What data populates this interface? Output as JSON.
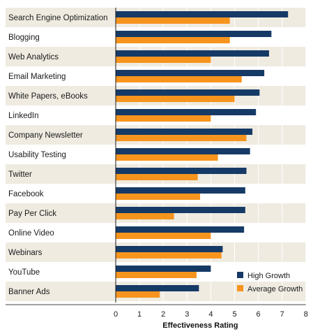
{
  "chart_data": {
    "type": "bar",
    "orientation": "horizontal",
    "categories": [
      "Search Engine Optimization",
      "Blogging",
      "Web Analytics",
      "Email Marketing",
      "White Papers, eBooks",
      "LinkedIn",
      "Company Newsletter",
      "Usability Testing",
      "Twitter",
      "Facebook",
      "Pay Per Click",
      "Online Video",
      "Webinars",
      "YouTube",
      "Banner Ads"
    ],
    "series": [
      {
        "name": "High Growth",
        "color": "#163a66",
        "values": [
          7.25,
          6.55,
          6.45,
          6.25,
          6.05,
          5.9,
          5.75,
          5.65,
          5.5,
          5.45,
          5.45,
          5.4,
          4.5,
          4.0,
          3.5
        ]
      },
      {
        "name": "Average Growth",
        "color": "#f7941d",
        "values": [
          4.8,
          4.8,
          4.0,
          5.3,
          5.0,
          4.0,
          5.5,
          4.3,
          3.45,
          3.55,
          2.45,
          4.0,
          4.45,
          3.4,
          1.85
        ]
      }
    ],
    "xlabel": "Effectiveness Rating",
    "xlim": [
      0,
      8
    ],
    "xticks": [
      "0",
      "1",
      "2",
      "3",
      "4",
      "5",
      "6",
      "7",
      "8"
    ],
    "grid": "vertical",
    "row_band_color": "#efebe1",
    "legend_position": "bottom-right"
  }
}
